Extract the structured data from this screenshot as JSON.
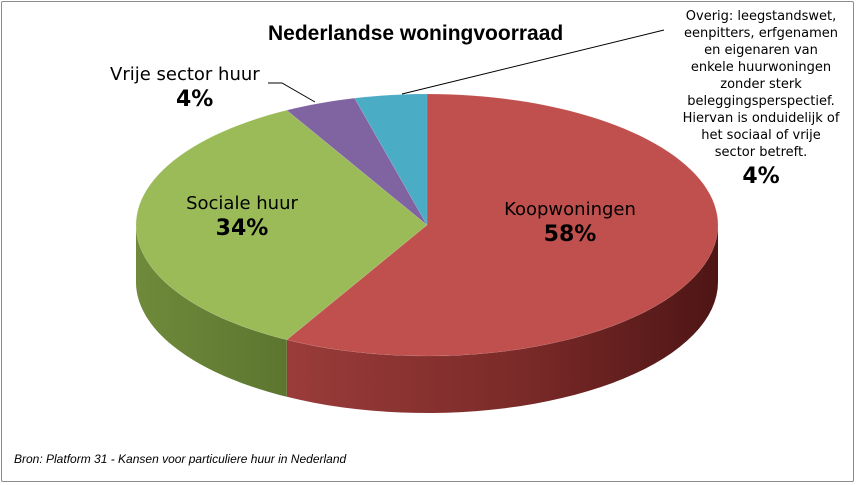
{
  "chart_data": {
    "type": "pie",
    "title": "Nederlandse woningvoorraad",
    "slices": [
      {
        "label": "Koopwoningen",
        "value": 58,
        "value_label": "58%",
        "color": "#c0504d"
      },
      {
        "label": "Sociale huur",
        "value": 34,
        "value_label": "34%",
        "color": "#9bbb59"
      },
      {
        "label": "Vrije sector huur",
        "value": 4,
        "value_label": "4%",
        "color": "#8064a2"
      },
      {
        "label": "Overig: leegstandswet, eenpitters, erfgenamen en eigenaren van enkele huurwoningen zonder sterk beleggingsperspectief. Hiervan is onduidelijk of het sociaal of vrije sector betreft.",
        "value": 4,
        "value_label": "4%",
        "color": "#4bacc6"
      }
    ],
    "legend": "none",
    "style": "3d"
  },
  "labels": {
    "overig_lines": [
      "Overig: leegstandswet,",
      "eenpitters, erfgenamen",
      "en eigenaren van",
      "enkele huurwoningen",
      "zonder sterk",
      "beleggingsperspectief.",
      "Hiervan is onduidelijk of",
      "het sociaal of vrije",
      "sector betreft."
    ]
  },
  "source": "Bron: Platform 31 - Kansen voor particuliere huur in Nederland"
}
